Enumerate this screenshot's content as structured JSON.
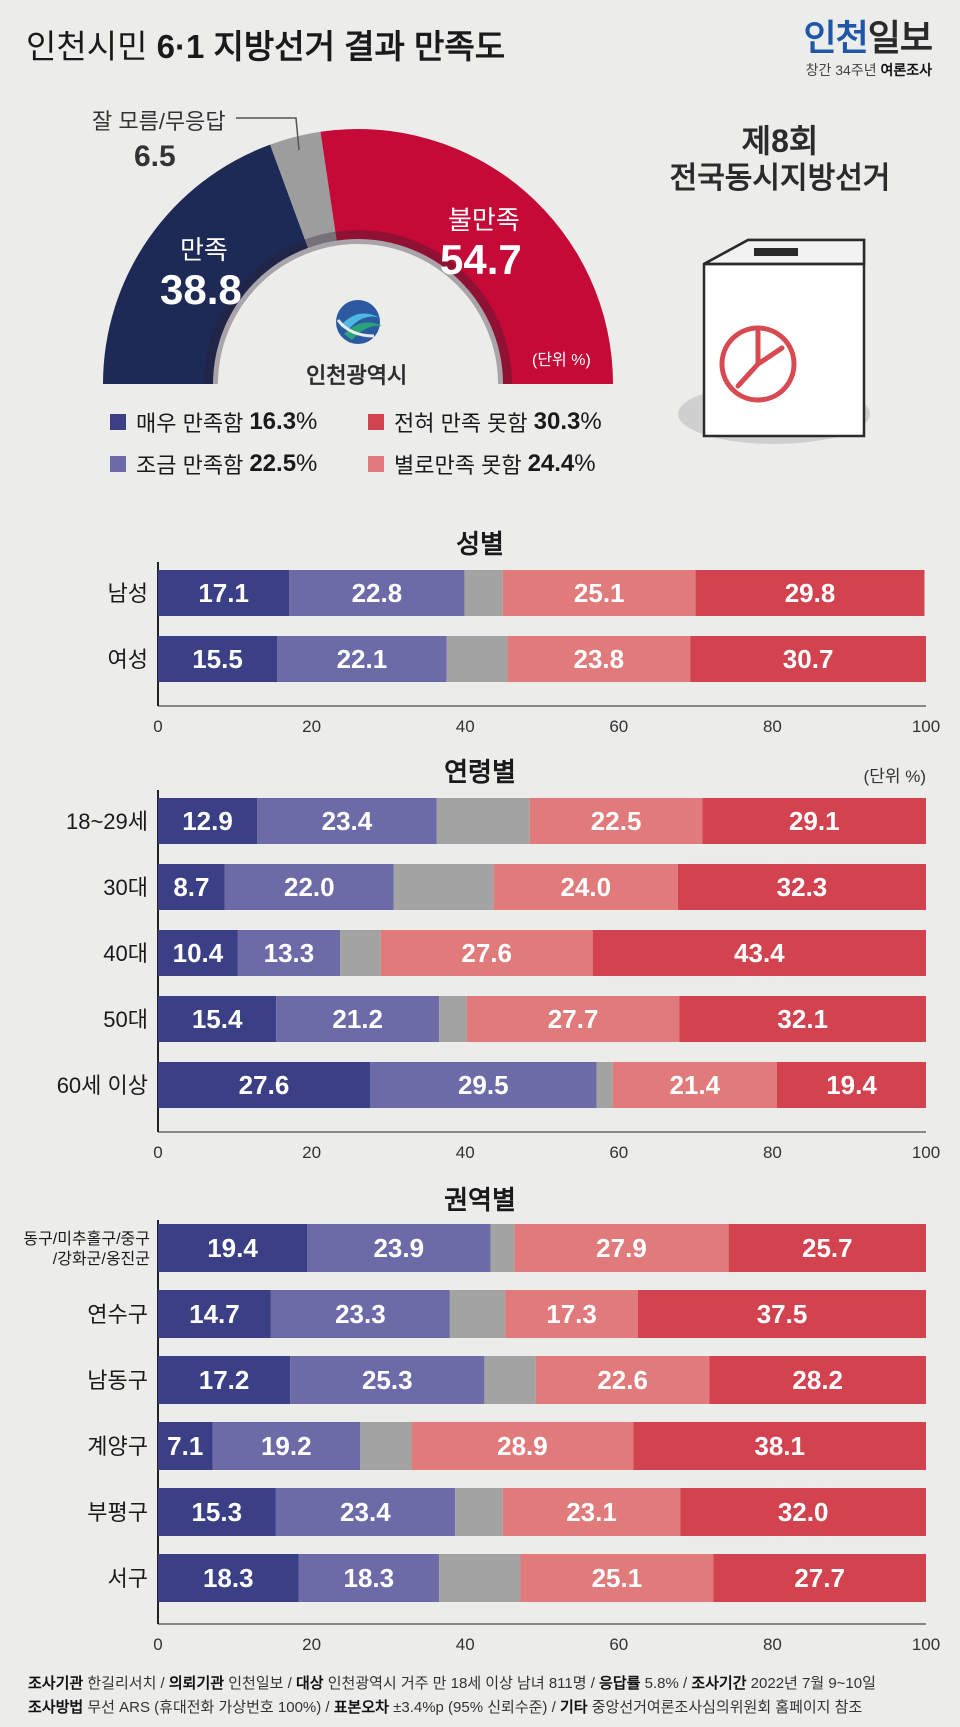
{
  "header": {
    "title_light": "인천시민",
    "title_bold": "6·1 지방선거 결과 만족도",
    "brand_main_blue": "인천",
    "brand_main_dark": "일보",
    "brand_sub_light": "창간 34주년",
    "brand_sub_bold": "여론조사"
  },
  "election_badge": {
    "line1": "제8회",
    "line2": "전국동시지방선거"
  },
  "logo_text": "인천광역시",
  "gauge": {
    "unit": "(단위 %)",
    "dontknow_label": "잘 모름/무응답",
    "dontknow_value": "6.5",
    "satisfied_label": "만족",
    "satisfied_value": "38.8",
    "dissatisfied_label": "불만족",
    "dissatisfied_value": "54.7"
  },
  "legend": [
    {
      "label": "매우 만족함",
      "value": "16.3",
      "unit": "%",
      "color": "#3a3f86"
    },
    {
      "label": "전혀 만족 못함",
      "value": "30.3",
      "unit": "%",
      "color": "#d2424f"
    },
    {
      "label": "조금 만족함",
      "value": "22.5",
      "unit": "%",
      "color": "#6d6aa8"
    },
    {
      "label": "별로만족 못함",
      "value": "24.4",
      "unit": "%",
      "color": "#e07a7b"
    }
  ],
  "colors": {
    "very_satisfied": "#3a3f86",
    "somewhat_satisfied": "#6d6aa8",
    "dont_know": "#a3a3a3",
    "not_very": "#e07a7b",
    "not_at_all": "#d2424f",
    "gauge_satisfied": "#1c2a55",
    "gauge_dissatisfied": "#c50a37",
    "gauge_dontknow": "#9d9d9d",
    "brand_blue": "#1f56a8"
  },
  "chart_data": [
    {
      "type": "pie",
      "categories": [
        "만족",
        "잘 모름/무응답",
        "불만족"
      ],
      "values": [
        38.8,
        6.5,
        54.7
      ]
    },
    {
      "type": "bar",
      "title": "성별",
      "categories": [
        "남성",
        "여성"
      ],
      "series": [
        {
          "name": "매우 만족함",
          "values": [
            17.1,
            15.5
          ]
        },
        {
          "name": "조금 만족함",
          "values": [
            22.8,
            22.1
          ]
        },
        {
          "name": "잘 모름/무응답",
          "values": [
            5.0,
            7.9
          ]
        },
        {
          "name": "별로만족 못함",
          "values": [
            25.1,
            23.8
          ]
        },
        {
          "name": "전혀 만족 못함",
          "values": [
            29.8,
            30.7
          ]
        }
      ],
      "xlim": [
        0,
        100
      ],
      "ticks": [
        "0",
        "20",
        "40",
        "60",
        "80",
        "100"
      ]
    },
    {
      "type": "bar",
      "title": "연령별",
      "unit": "(단위 %)",
      "categories": [
        "18~29세",
        "30대",
        "40대",
        "50대",
        "60세 이상"
      ],
      "series": [
        {
          "name": "매우 만족함",
          "values": [
            12.9,
            8.7,
            10.4,
            15.4,
            27.6
          ]
        },
        {
          "name": "조금 만족함",
          "values": [
            23.4,
            22.0,
            13.3,
            21.2,
            29.5
          ]
        },
        {
          "name": "잘 모름/무응답",
          "values": [
            12.1,
            13.0,
            5.3,
            3.6,
            2.1
          ]
        },
        {
          "name": "별로만족 못함",
          "values": [
            22.5,
            24.0,
            27.6,
            27.7,
            21.4
          ]
        },
        {
          "name": "전혀 만족 못함",
          "values": [
            29.1,
            32.3,
            43.4,
            32.1,
            19.4
          ]
        }
      ],
      "xlim": [
        0,
        100
      ],
      "ticks": [
        "0",
        "20",
        "40",
        "60",
        "80",
        "100"
      ]
    },
    {
      "type": "bar",
      "title": "권역별",
      "categories": [
        [
          "동구/미추홀구/중구",
          "/강화군/옹진군"
        ],
        [
          "연수구"
        ],
        [
          "남동구"
        ],
        [
          "계양구"
        ],
        [
          "부평구"
        ],
        [
          "서구"
        ]
      ],
      "series": [
        {
          "name": "매우 만족함",
          "values": [
            19.4,
            14.7,
            17.2,
            7.1,
            15.3,
            18.3
          ]
        },
        {
          "name": "조금 만족함",
          "values": [
            23.9,
            23.3,
            25.3,
            19.2,
            23.4,
            18.3
          ]
        },
        {
          "name": "잘 모름/무응답",
          "values": [
            3.1,
            7.2,
            6.7,
            6.7,
            6.2,
            10.6
          ]
        },
        {
          "name": "별로만족 못함",
          "values": [
            27.9,
            17.3,
            22.6,
            28.9,
            23.1,
            25.1
          ]
        },
        {
          "name": "전혀 만족 못함",
          "values": [
            25.7,
            37.5,
            28.2,
            38.1,
            32.0,
            27.7
          ]
        }
      ],
      "xlim": [
        0,
        100
      ],
      "ticks": [
        "0",
        "20",
        "40",
        "60",
        "80",
        "100"
      ]
    }
  ],
  "footer": {
    "line1": [
      {
        "k": "조사기관",
        "v": " 한길리서치 / "
      },
      {
        "k": "의뢰기관",
        "v": " 인천일보 / "
      },
      {
        "k": "대상",
        "v": " 인천광역시 거주 만 18세 이상 남녀 811명 / "
      },
      {
        "k": "응답률",
        "v": " 5.8% / "
      },
      {
        "k": "조사기간",
        "v": " 2022년 7월 9~10일"
      }
    ],
    "line2": [
      {
        "k": "조사방법",
        "v": " 무선 ARS (휴대전화 가상번호 100%) / "
      },
      {
        "k": "표본오차",
        "v": " ±3.4%p (95% 신뢰수준) / "
      },
      {
        "k": "기타",
        "v": " 중앙선거여론조사심의위원회 홈페이지 참조"
      }
    ]
  }
}
